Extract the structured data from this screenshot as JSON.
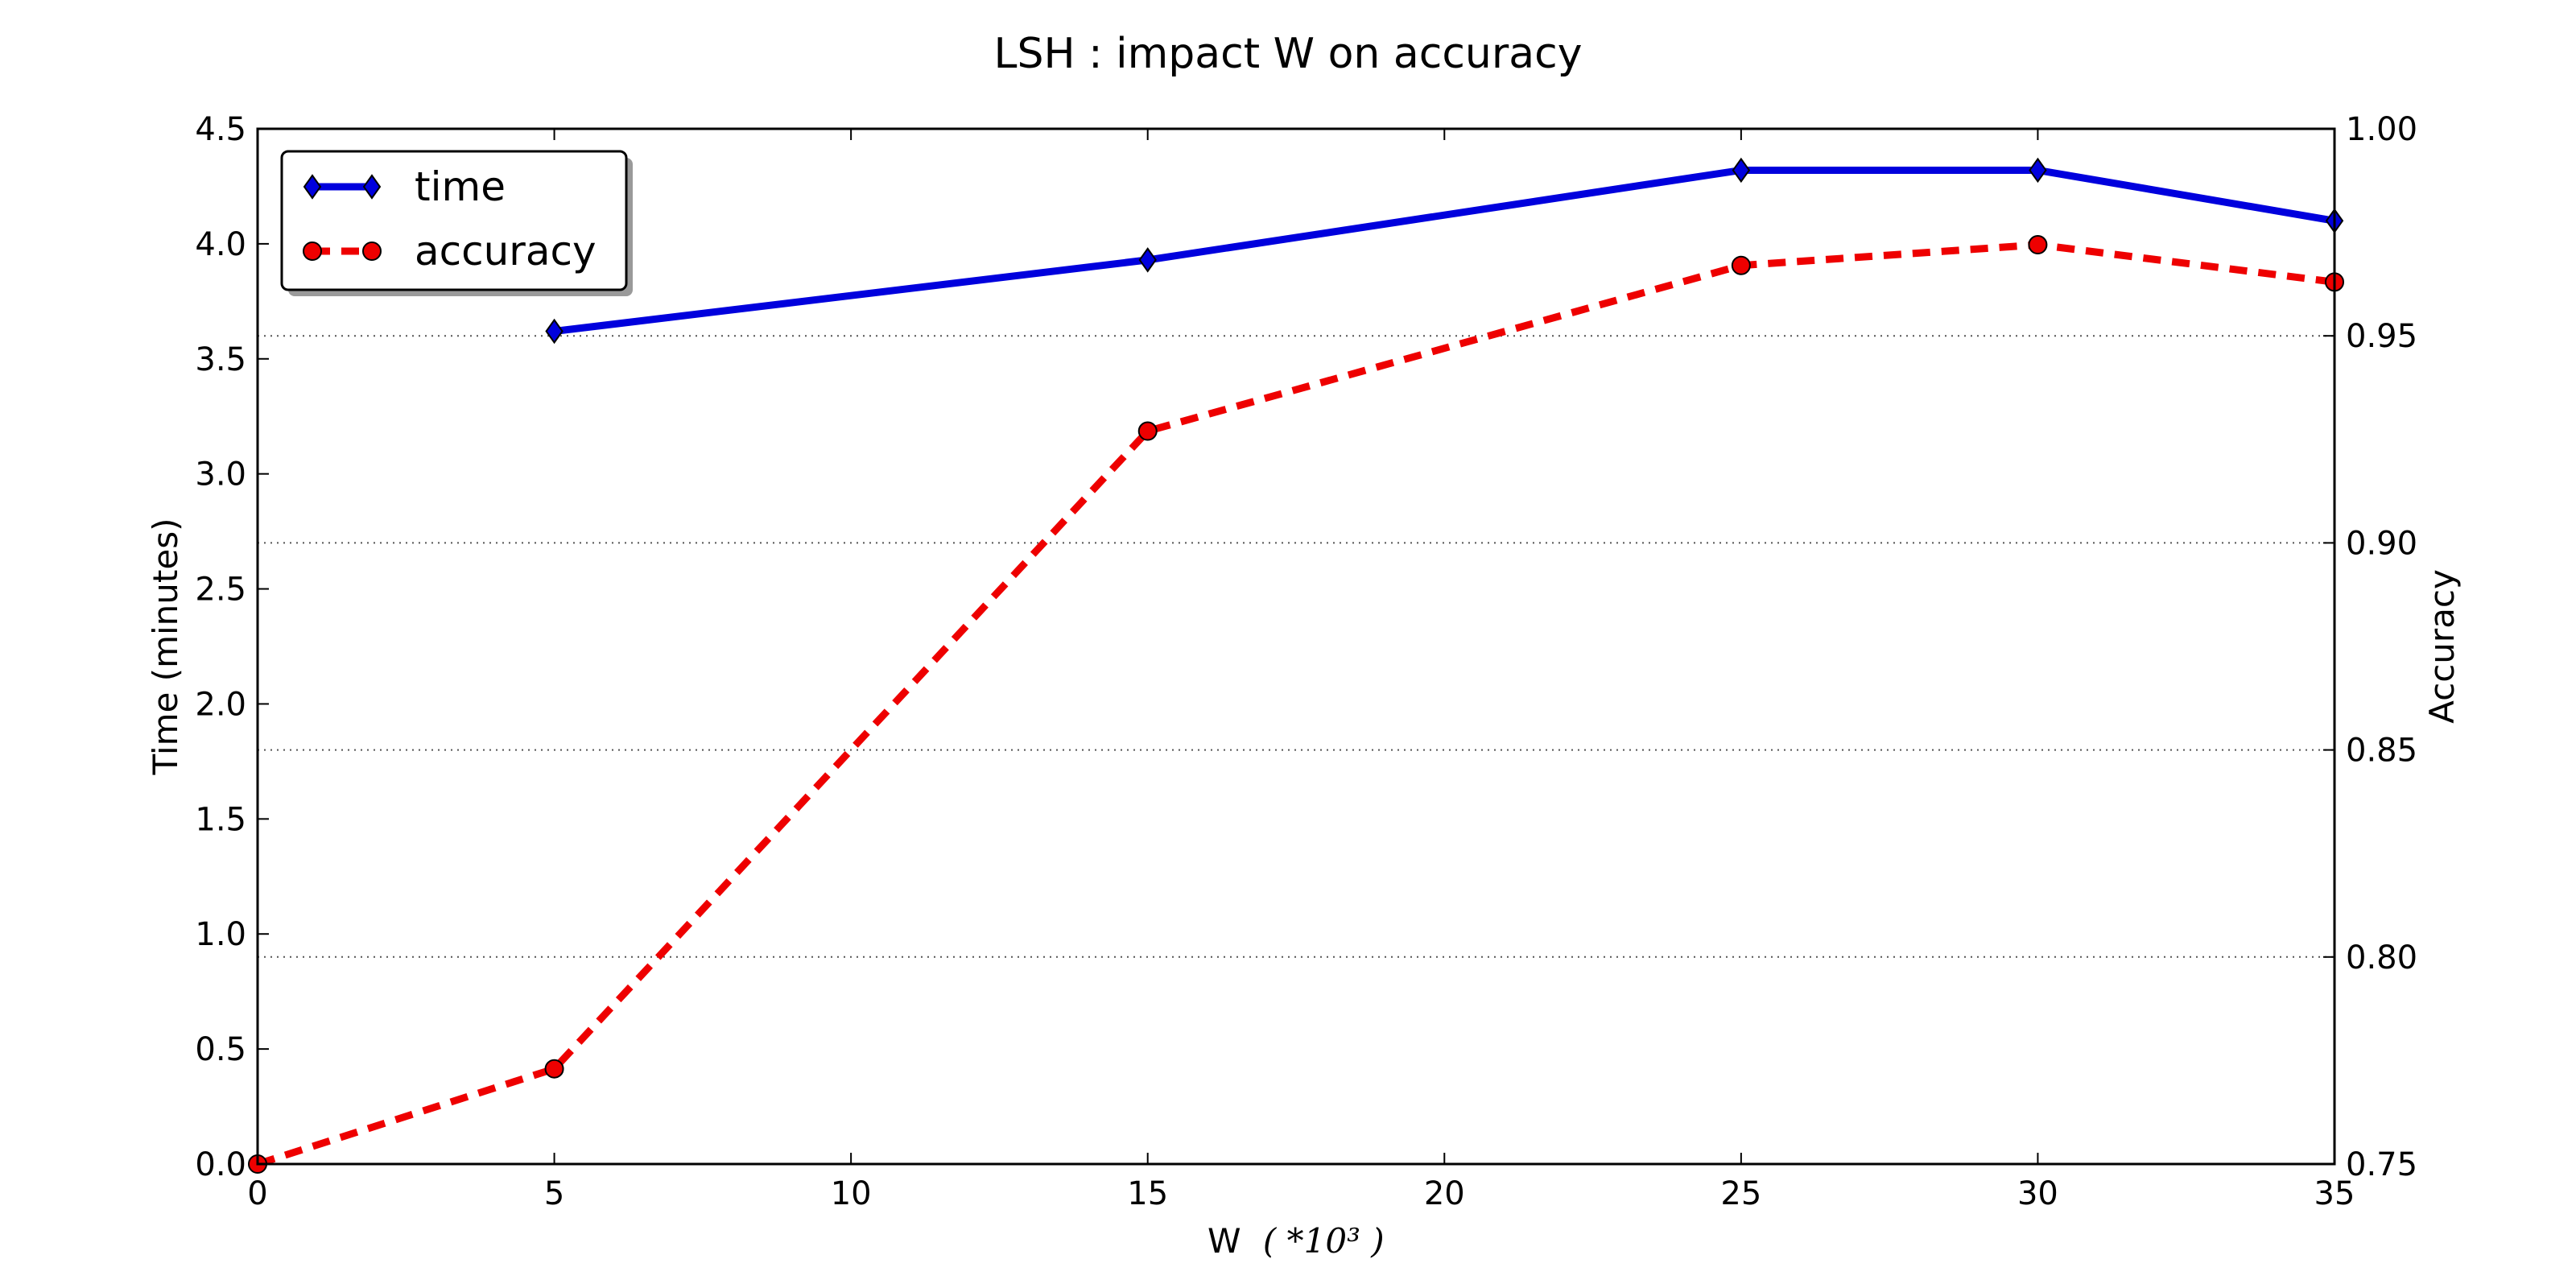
{
  "chart_data": {
    "type": "line",
    "title": "LSH : impact W on accuracy",
    "xlabel": "W",
    "xlabel_suffix": "( *10³ )",
    "ylabel_left": "Time (minutes)",
    "ylabel_right": "Accuracy",
    "xlim": [
      0,
      35
    ],
    "ylim_left": [
      0,
      4.5
    ],
    "ylim_right": [
      0.75,
      1.0
    ],
    "x_ticks": [
      0,
      5,
      10,
      15,
      20,
      25,
      30,
      35
    ],
    "y_left_ticks": [
      "0.0",
      "0.5",
      "1.0",
      "1.5",
      "2.0",
      "2.5",
      "3.0",
      "3.5",
      "4.0",
      "4.5"
    ],
    "y_right_ticks": [
      "0.75",
      "0.80",
      "0.85",
      "0.90",
      "0.95",
      "1.00"
    ],
    "grid": "horizontal dotted at right-axis ticks",
    "legend_position": "top-left",
    "series": [
      {
        "name": "time",
        "axis": "left",
        "color": "#0000dd",
        "style": "solid",
        "marker": "thin-diamond",
        "x": [
          5,
          15,
          25,
          30,
          35
        ],
        "values": [
          3.62,
          3.93,
          4.32,
          4.32,
          4.1
        ]
      },
      {
        "name": "accuracy",
        "axis": "right",
        "color": "#ee0000",
        "style": "dashed",
        "marker": "circle",
        "x": [
          0,
          5,
          15,
          25,
          30,
          35
        ],
        "values": [
          0.75,
          0.773,
          0.927,
          0.967,
          0.972,
          0.963
        ]
      }
    ]
  }
}
